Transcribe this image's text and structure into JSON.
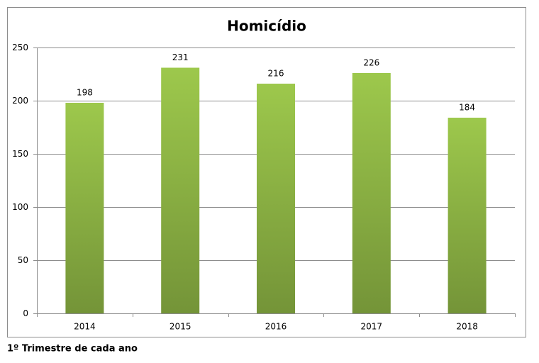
{
  "chart_data": {
    "type": "bar",
    "title": "Homicídio",
    "categories": [
      "2014",
      "2015",
      "2016",
      "2017",
      "2018"
    ],
    "values": [
      198,
      231,
      216,
      226,
      184
    ],
    "color": "#9dc84c",
    "ylim": [
      0,
      250
    ],
    "yticks": [
      0,
      50,
      100,
      150,
      200,
      250
    ],
    "grid": true,
    "caption": "1º Trimestre de cada ano"
  }
}
